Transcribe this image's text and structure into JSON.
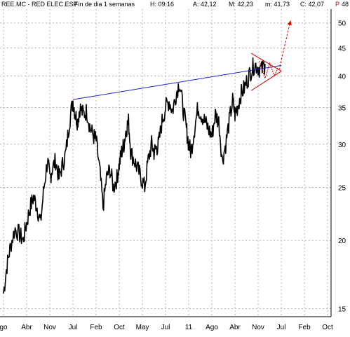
{
  "header": {
    "ticker": "REE.MC - RED ELEC.ESP",
    "period": "Fin de dia 1 semanas",
    "high": "H: 09:16",
    "ask": "A: 42,12",
    "mid": "M: 42,23",
    "low": "m: 41,73",
    "close": "C: 42,07",
    "p_label": "P",
    "extra": "48"
  },
  "colors": {
    "price": "#000000",
    "trendline": "#2020c8",
    "projection": "#d40000",
    "grid": "#b4b4b4"
  },
  "chart_data": {
    "type": "line",
    "title": "",
    "xlabel": "",
    "ylabel": "",
    "y_scale": "log",
    "ylim": [
      14.5,
      53
    ],
    "grid": {
      "vertical": true,
      "horizontal": true
    },
    "y_ticks": [
      15,
      20,
      25,
      30,
      35,
      40,
      45,
      50
    ],
    "x_ticks": [
      {
        "label": "go",
        "t": 0
      },
      {
        "label": "Abr",
        "t": 1
      },
      {
        "label": "Nov",
        "t": 2
      },
      {
        "label": "Jul",
        "t": 3
      },
      {
        "label": "Feb",
        "t": 4
      },
      {
        "label": "Oct",
        "t": 5
      },
      {
        "label": "May",
        "t": 6
      },
      {
        "label": "Jul",
        "t": 7
      },
      {
        "label": "11",
        "t": 8
      },
      {
        "label": "Ago",
        "t": 9
      },
      {
        "label": "Abr",
        "t": 10
      },
      {
        "label": "Nov",
        "t": 11
      },
      {
        "label": "Jul",
        "t": 12
      },
      {
        "label": "Feb",
        "t": 13
      },
      {
        "label": "Oct",
        "t": 14
      }
    ],
    "series": [
      {
        "values_t": [
          0,
          0.15,
          0.3,
          0.5,
          0.7,
          0.85,
          1.0,
          1.15,
          1.3,
          1.45,
          1.6,
          1.75,
          1.9,
          2.0,
          2.1,
          2.25,
          2.4,
          2.55,
          2.7,
          2.85,
          3.0,
          3.1,
          3.2,
          3.3,
          3.45,
          3.6,
          3.75,
          3.9,
          4.0,
          4.15,
          4.3,
          4.45,
          4.6,
          4.75,
          4.9,
          5.0,
          5.1,
          5.2,
          5.3,
          5.4,
          5.5,
          5.65,
          5.8,
          5.95,
          6.1,
          6.25,
          6.4,
          6.5,
          6.6,
          6.7,
          6.85,
          7.0,
          7.15,
          7.3,
          7.45,
          7.6,
          7.75,
          7.9,
          8.0,
          8.1,
          8.25,
          8.4,
          8.55,
          8.7,
          8.85,
          9.0,
          9.15,
          9.3,
          9.45,
          9.6,
          9.75,
          9.9,
          10.0,
          10.1,
          10.25,
          10.4,
          10.55,
          10.7,
          10.85,
          11.0,
          11.15,
          11.3
        ],
        "values": [
          16,
          18,
          19.5,
          21,
          20.5,
          20,
          21.5,
          23,
          24,
          23,
          21.5,
          25,
          28,
          26,
          27,
          28,
          26,
          27.5,
          29,
          33,
          36,
          34,
          33,
          35,
          34,
          34.5,
          32,
          31,
          30.5,
          27,
          23,
          26,
          27,
          25,
          26,
          27.5,
          29,
          30,
          32,
          33,
          29,
          28,
          27,
          26,
          25,
          28,
          30,
          29,
          29.5,
          30,
          33,
          35,
          36,
          34.5,
          37,
          39,
          35,
          32,
          30,
          29,
          32,
          35,
          34,
          33,
          32,
          31,
          34,
          33,
          28,
          30,
          33,
          36,
          34,
          35,
          37,
          38,
          39.5,
          41,
          42,
          41.5,
          41,
          42.07
        ]
      }
    ],
    "annotations": {
      "trendline": {
        "from": [
          3.0,
          36.2
        ],
        "to": [
          12.0,
          41.8
        ]
      },
      "triangle_upper": {
        "from": [
          10.7,
          44.0
        ],
        "to": [
          12.0,
          40.8
        ]
      },
      "triangle_lower": {
        "from": [
          10.7,
          37.6
        ],
        "to": [
          12.0,
          40.8
        ]
      },
      "projection_arrow": {
        "from": [
          11.9,
          41.0
        ],
        "to": [
          12.4,
          50.5
        ]
      }
    }
  }
}
